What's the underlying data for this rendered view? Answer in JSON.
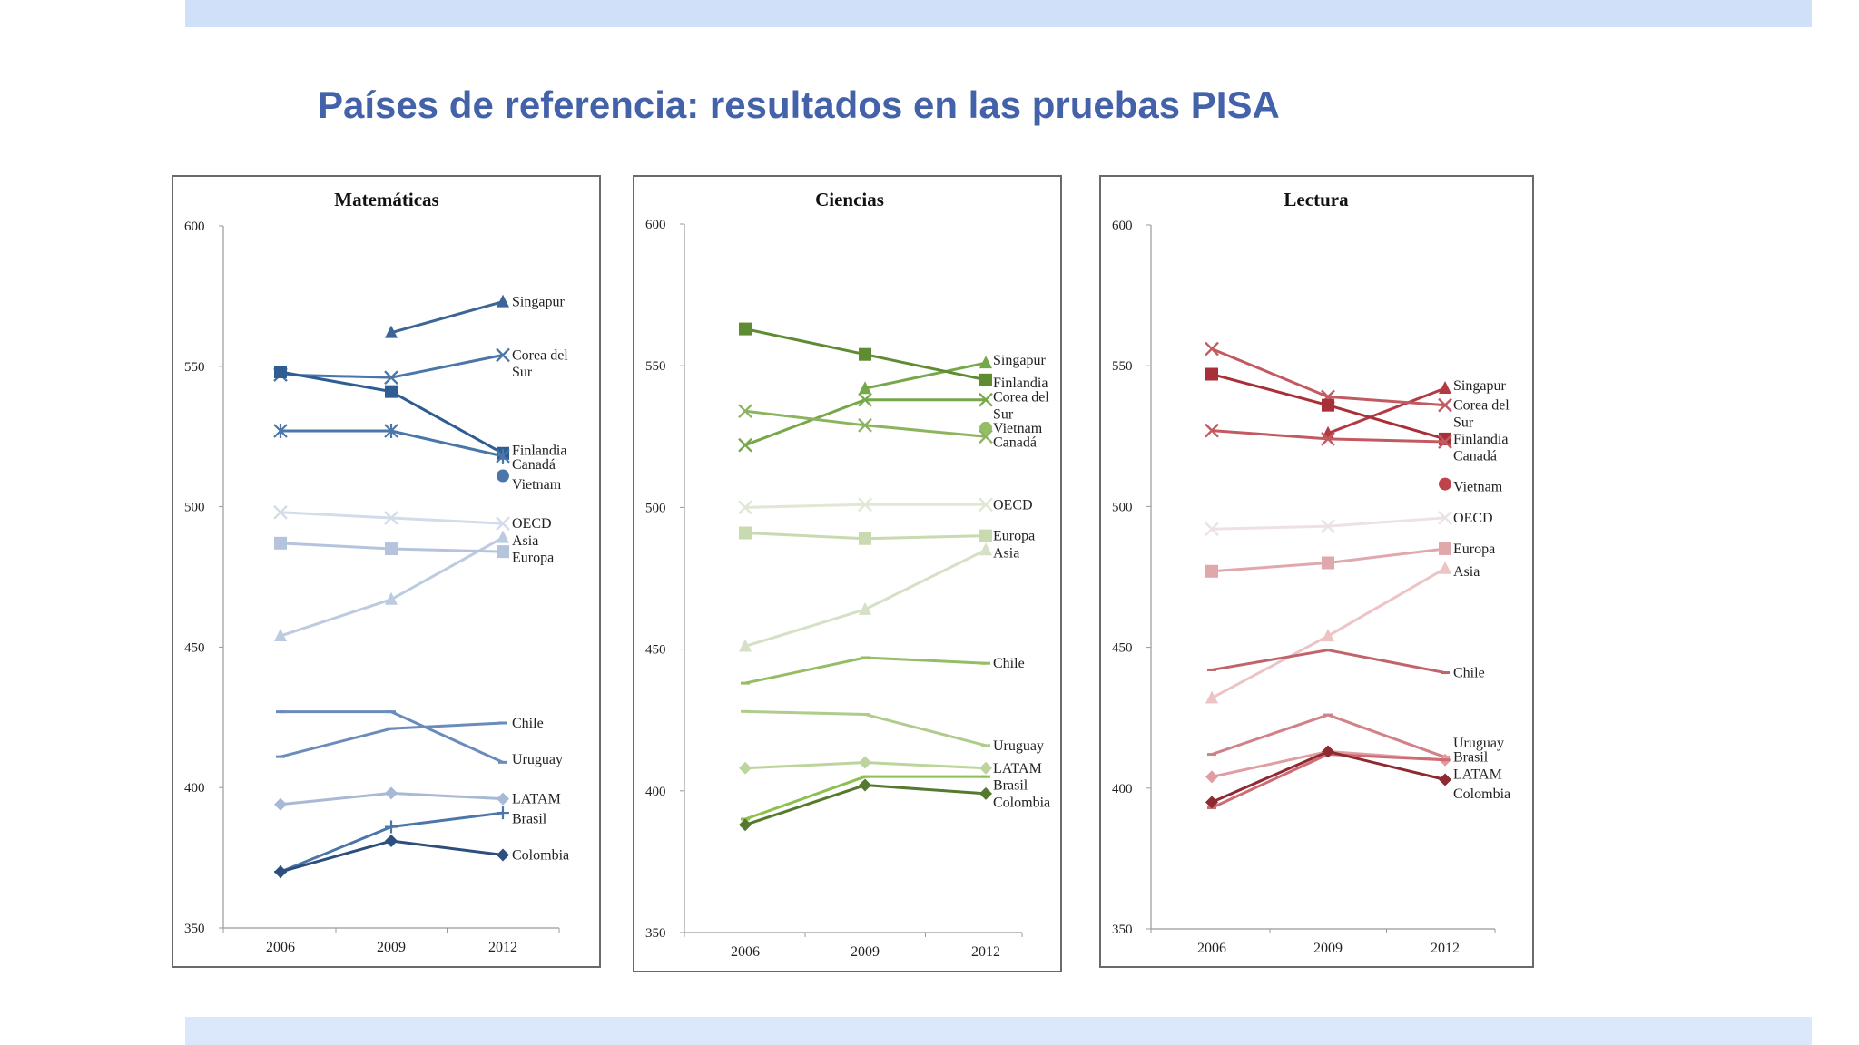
{
  "page": {
    "title": "Países de referencia: resultados en las pruebas PISA"
  },
  "chart_data": [
    {
      "type": "line",
      "title": "Matemáticas",
      "categories": [
        "2006",
        "2009",
        "2012"
      ],
      "ylim": [
        350,
        600
      ],
      "yticks": [
        "350",
        "400",
        "450",
        "500",
        "550",
        "600"
      ],
      "series": [
        {
          "name": "Singapur",
          "values": [
            null,
            562,
            573
          ],
          "marker": "triangle",
          "color": "#3b6596"
        },
        {
          "name": "Corea del Sur",
          "values": [
            547,
            546,
            554
          ],
          "marker": "x",
          "color": "#4a76aa"
        },
        {
          "name": "Finlandia",
          "values": [
            548,
            541,
            519
          ],
          "marker": "square",
          "color": "#2f5d92"
        },
        {
          "name": "Canadá",
          "values": [
            527,
            527,
            518
          ],
          "marker": "star",
          "color": "#4a76aa"
        },
        {
          "name": "Vietnam",
          "values": [
            null,
            null,
            511
          ],
          "marker": "circle",
          "color": "#4a76aa"
        },
        {
          "name": "OECD",
          "values": [
            498,
            496,
            494
          ],
          "marker": "x",
          "color": "#d3dcea"
        },
        {
          "name": "Asia",
          "values": [
            454,
            467,
            489
          ],
          "marker": "triangle",
          "color": "#bccbe0"
        },
        {
          "name": "Europa",
          "values": [
            487,
            485,
            484
          ],
          "marker": "square",
          "color": "#b5c4dd"
        },
        {
          "name": "Chile",
          "values": [
            411,
            421,
            423
          ],
          "marker": "dash",
          "color": "#6a8cbc"
        },
        {
          "name": "Uruguay",
          "values": [
            427,
            427,
            409
          ],
          "marker": "dash",
          "color": "#6a8cbc"
        },
        {
          "name": "LATAM",
          "values": [
            394,
            398,
            396
          ],
          "marker": "diamond",
          "color": "#a8b9d6"
        },
        {
          "name": "Brasil",
          "values": [
            370,
            386,
            391
          ],
          "marker": "plus",
          "color": "#4a76aa"
        },
        {
          "name": "Colombia",
          "values": [
            370,
            381,
            376
          ],
          "marker": "diamond",
          "color": "#2c4f7e"
        }
      ],
      "labels": [
        {
          "text": "Singapur",
          "y": 573
        },
        {
          "text": "Corea del",
          "y": 554
        },
        {
          "text": "Sur",
          "y": 548
        },
        {
          "text": "Finlandia",
          "y": 520
        },
        {
          "text": "Canadá",
          "y": 515
        },
        {
          "text": "Vietnam",
          "y": 508
        },
        {
          "text": "OECD",
          "y": 494
        },
        {
          "text": "Asia",
          "y": 488
        },
        {
          "text": "Europa",
          "y": 482
        },
        {
          "text": "Chile",
          "y": 423
        },
        {
          "text": "Uruguay",
          "y": 410
        },
        {
          "text": "LATAM",
          "y": 396
        },
        {
          "text": "Brasil",
          "y": 389
        },
        {
          "text": "Colombia",
          "y": 376
        }
      ]
    },
    {
      "type": "line",
      "title": "Ciencias",
      "categories": [
        "2006",
        "2009",
        "2012"
      ],
      "ylim": [
        350,
        600
      ],
      "yticks": [
        "350",
        "400",
        "450",
        "500",
        "550",
        "600"
      ],
      "series": [
        {
          "name": "Singapur",
          "values": [
            null,
            542,
            551
          ],
          "marker": "triangle",
          "color": "#76a84a"
        },
        {
          "name": "Finlandia",
          "values": [
            563,
            554,
            545
          ],
          "marker": "square",
          "color": "#5f8c33"
        },
        {
          "name": "Corea del Sur",
          "values": [
            522,
            538,
            538
          ],
          "marker": "x",
          "color": "#76a84a"
        },
        {
          "name": "Vietnam",
          "values": [
            null,
            null,
            528
          ],
          "marker": "circle",
          "color": "#94bd65"
        },
        {
          "name": "Canadá",
          "values": [
            534,
            529,
            525
          ],
          "marker": "x",
          "color": "#8cb35f"
        },
        {
          "name": "OECD",
          "values": [
            500,
            501,
            501
          ],
          "marker": "x",
          "color": "#dfe8d4"
        },
        {
          "name": "Europa",
          "values": [
            491,
            489,
            490
          ],
          "marker": "square",
          "color": "#c9dab0"
        },
        {
          "name": "Asia",
          "values": [
            451,
            464,
            485
          ],
          "marker": "triangle",
          "color": "#d5e0c6"
        },
        {
          "name": "Chile",
          "values": [
            438,
            447,
            445
          ],
          "marker": "dash",
          "color": "#94bd65"
        },
        {
          "name": "Uruguay",
          "values": [
            428,
            427,
            416
          ],
          "marker": "dash",
          "color": "#b0cc8c"
        },
        {
          "name": "LATAM",
          "values": [
            408,
            410,
            408
          ],
          "marker": "diamond",
          "color": "#bcd59c"
        },
        {
          "name": "Brasil",
          "values": [
            390,
            405,
            405
          ],
          "marker": "dash",
          "color": "#8cc14f"
        },
        {
          "name": "Colombia",
          "values": [
            388,
            402,
            399
          ],
          "marker": "diamond",
          "color": "#557a2f"
        }
      ],
      "labels": [
        {
          "text": "Singapur",
          "y": 552
        },
        {
          "text": "Finlandia",
          "y": 544
        },
        {
          "text": "Corea del",
          "y": 539
        },
        {
          "text": "Sur",
          "y": 533
        },
        {
          "text": "Vietnam",
          "y": 528
        },
        {
          "text": "Canadá",
          "y": 523
        },
        {
          "text": "OECD",
          "y": 501
        },
        {
          "text": "Europa",
          "y": 490
        },
        {
          "text": "Asia",
          "y": 484
        },
        {
          "text": "Chile",
          "y": 445
        },
        {
          "text": "Uruguay",
          "y": 416
        },
        {
          "text": "LATAM",
          "y": 408
        },
        {
          "text": "Brasil",
          "y": 402
        },
        {
          "text": "Colombia",
          "y": 396
        }
      ]
    },
    {
      "type": "line",
      "title": "Lectura",
      "categories": [
        "2006",
        "2009",
        "2012"
      ],
      "ylim": [
        350,
        600
      ],
      "yticks": [
        "350",
        "400",
        "450",
        "500",
        "550",
        "600"
      ],
      "series": [
        {
          "name": "Singapur",
          "values": [
            null,
            526,
            542
          ],
          "marker": "triangle",
          "color": "#b23a43"
        },
        {
          "name": "Corea del Sur",
          "values": [
            556,
            539,
            536
          ],
          "marker": "x",
          "color": "#c25a62"
        },
        {
          "name": "Finlandia",
          "values": [
            547,
            536,
            524
          ],
          "marker": "square",
          "color": "#a83038"
        },
        {
          "name": "Canadá",
          "values": [
            527,
            524,
            523
          ],
          "marker": "x",
          "color": "#c25a62"
        },
        {
          "name": "Vietnam",
          "values": [
            null,
            null,
            508
          ],
          "marker": "circle",
          "color": "#c0434b"
        },
        {
          "name": "OECD",
          "values": [
            492,
            493,
            496
          ],
          "marker": "x",
          "color": "#ece2e4"
        },
        {
          "name": "Europa",
          "values": [
            477,
            480,
            485
          ],
          "marker": "square",
          "color": "#e0a8ac"
        },
        {
          "name": "Asia",
          "values": [
            432,
            454,
            478
          ],
          "marker": "triangle",
          "color": "#ecc4c6"
        },
        {
          "name": "Chile",
          "values": [
            442,
            449,
            441
          ],
          "marker": "dash",
          "color": "#c0646b"
        },
        {
          "name": "Uruguay",
          "values": [
            412,
            426,
            411
          ],
          "marker": "dash",
          "color": "#d08288"
        },
        {
          "name": "LATAM",
          "values": [
            404,
            413,
            410
          ],
          "marker": "diamond",
          "color": "#e09ea3"
        },
        {
          "name": "Brasil",
          "values": [
            393,
            412,
            410
          ],
          "marker": "dash",
          "color": "#cf6b72"
        },
        {
          "name": "Colombia",
          "values": [
            395,
            413,
            403
          ],
          "marker": "diamond",
          "color": "#8e2a32"
        }
      ],
      "labels": [
        {
          "text": "Singapur",
          "y": 543
        },
        {
          "text": "Corea del",
          "y": 536
        },
        {
          "text": "Sur",
          "y": 530
        },
        {
          "text": "Finlandia",
          "y": 524
        },
        {
          "text": "Canadá",
          "y": 518
        },
        {
          "text": "Vietnam",
          "y": 507
        },
        {
          "text": "OECD",
          "y": 496
        },
        {
          "text": "Europa",
          "y": 485
        },
        {
          "text": "Asia",
          "y": 477
        },
        {
          "text": "Chile",
          "y": 441
        },
        {
          "text": "Uruguay",
          "y": 416
        },
        {
          "text": "Brasil",
          "y": 411
        },
        {
          "text": "LATAM",
          "y": 405
        },
        {
          "text": "Colombia",
          "y": 398
        }
      ]
    }
  ]
}
